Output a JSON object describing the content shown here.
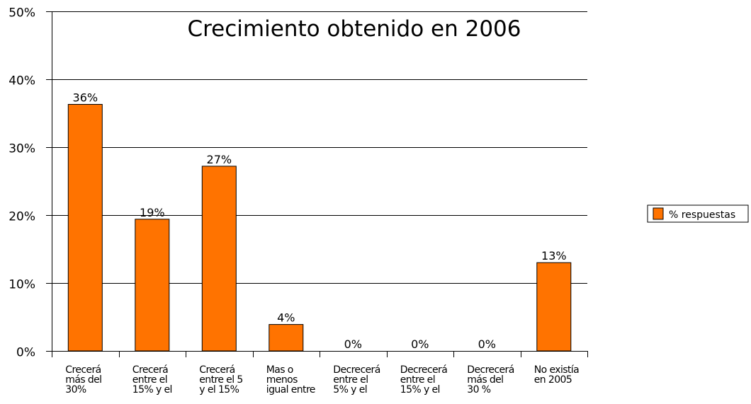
{
  "chart_data": {
    "type": "bar",
    "title": "Crecimiento obtenido en 2006",
    "xlabel": "",
    "ylabel": "",
    "ylim": [
      0,
      0.5
    ],
    "yticks": [
      0,
      0.1,
      0.2,
      0.3,
      0.4,
      0.5
    ],
    "ytick_labels": [
      "0%",
      "10%",
      "20%",
      "30%",
      "40%",
      "50%"
    ],
    "grid": true,
    "legend_position": "right",
    "categories": [
      [
        "Crecerá",
        "más del",
        "30%"
      ],
      [
        "Crecerá",
        "entre el",
        "15% y el"
      ],
      [
        "Crecerá",
        "entre el 5",
        "y el 15%"
      ],
      [
        "Mas o",
        "menos",
        "igual entre"
      ],
      [
        "Decrecerá",
        "entre el",
        "5% y el"
      ],
      [
        "Decrecerá",
        "entre el",
        "15% y el"
      ],
      [
        "Decrecerá",
        "más del",
        "30 %"
      ],
      [
        "No existía",
        "en 2005"
      ]
    ],
    "series": [
      {
        "name": "% respuestas",
        "color": "#ff7300",
        "values": [
          0.363,
          0.194,
          0.272,
          0.039,
          0.0,
          0.0,
          0.0,
          0.13
        ],
        "data_labels": [
          "36%",
          "19%",
          "27%",
          "4%",
          "0%",
          "0%",
          "0%",
          "13%"
        ]
      }
    ]
  }
}
